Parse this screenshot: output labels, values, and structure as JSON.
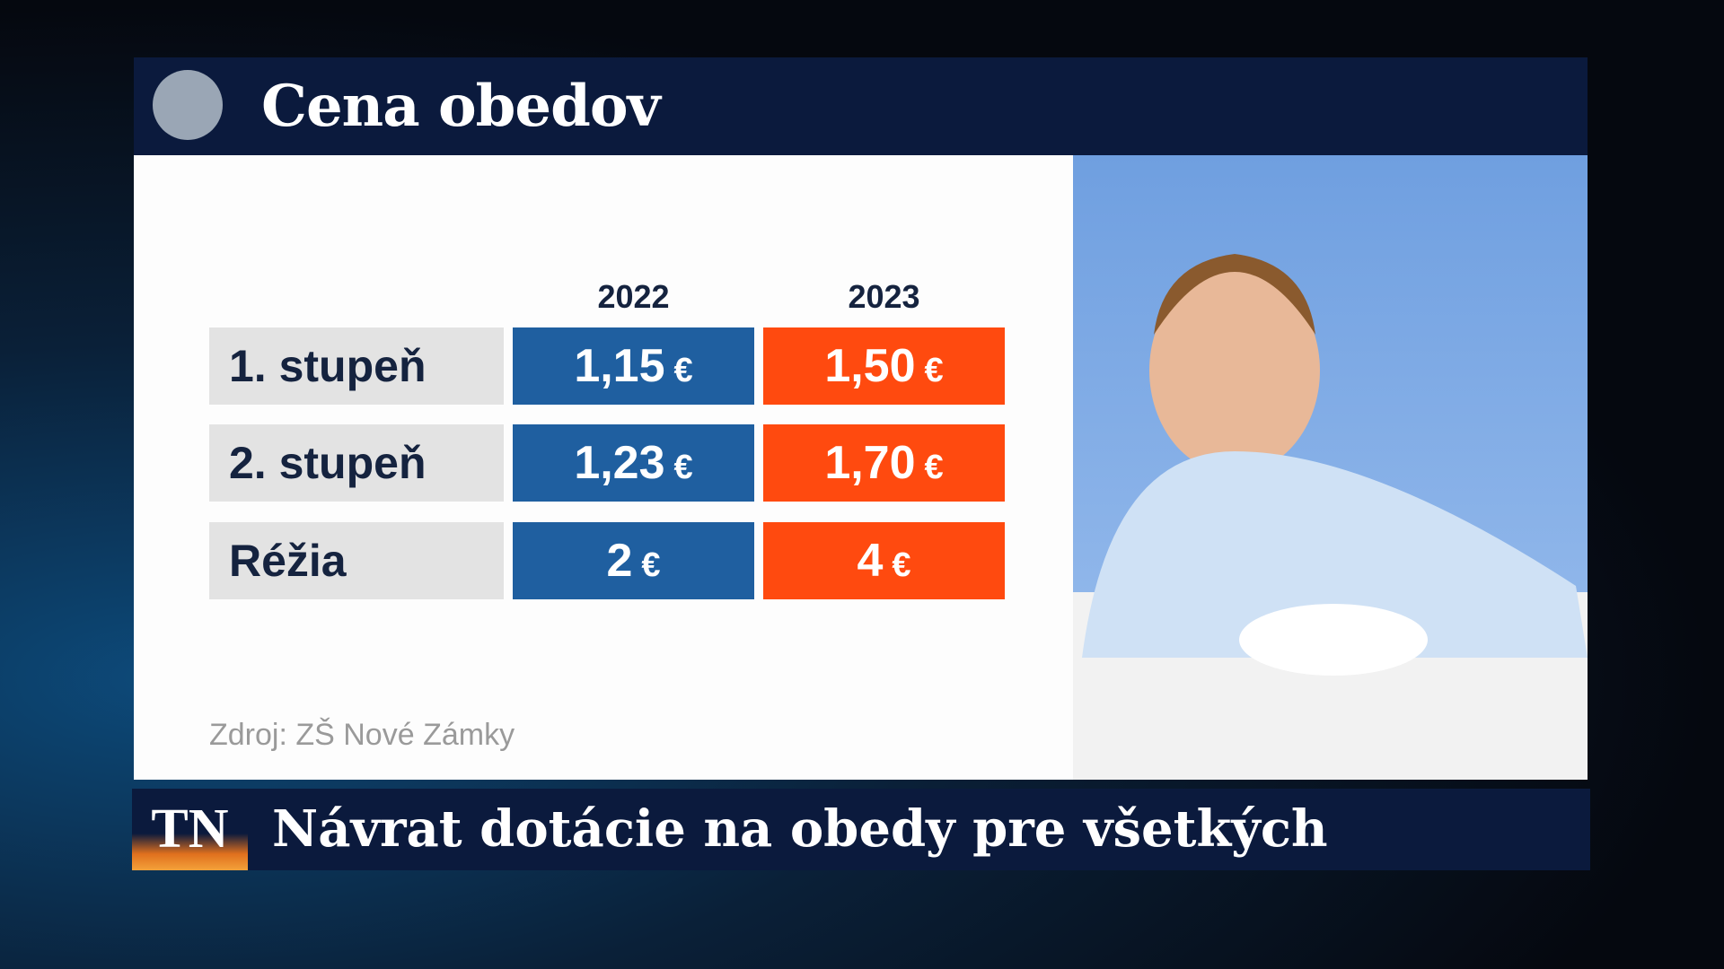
{
  "header": {
    "title": "Cena obedov"
  },
  "table": {
    "columns": [
      "2022",
      "2023"
    ],
    "rows": [
      {
        "label": "1. stupeň",
        "cells": [
          {
            "amount": "1,15",
            "unit": "€"
          },
          {
            "amount": "1,50",
            "unit": "€"
          }
        ]
      },
      {
        "label": "2. stupeň",
        "cells": [
          {
            "amount": "1,23",
            "unit": "€"
          },
          {
            "amount": "1,70",
            "unit": "€"
          }
        ]
      },
      {
        "label": "Réžia",
        "cells": [
          {
            "amount": "2",
            "unit": "€"
          },
          {
            "amount": "4",
            "unit": "€"
          }
        ]
      }
    ]
  },
  "source": "Zdroj: ZŠ Nové Zámky",
  "lower_third": {
    "logo": "TN",
    "headline": "Návrat dotácie na obedy pre všetkých"
  }
}
